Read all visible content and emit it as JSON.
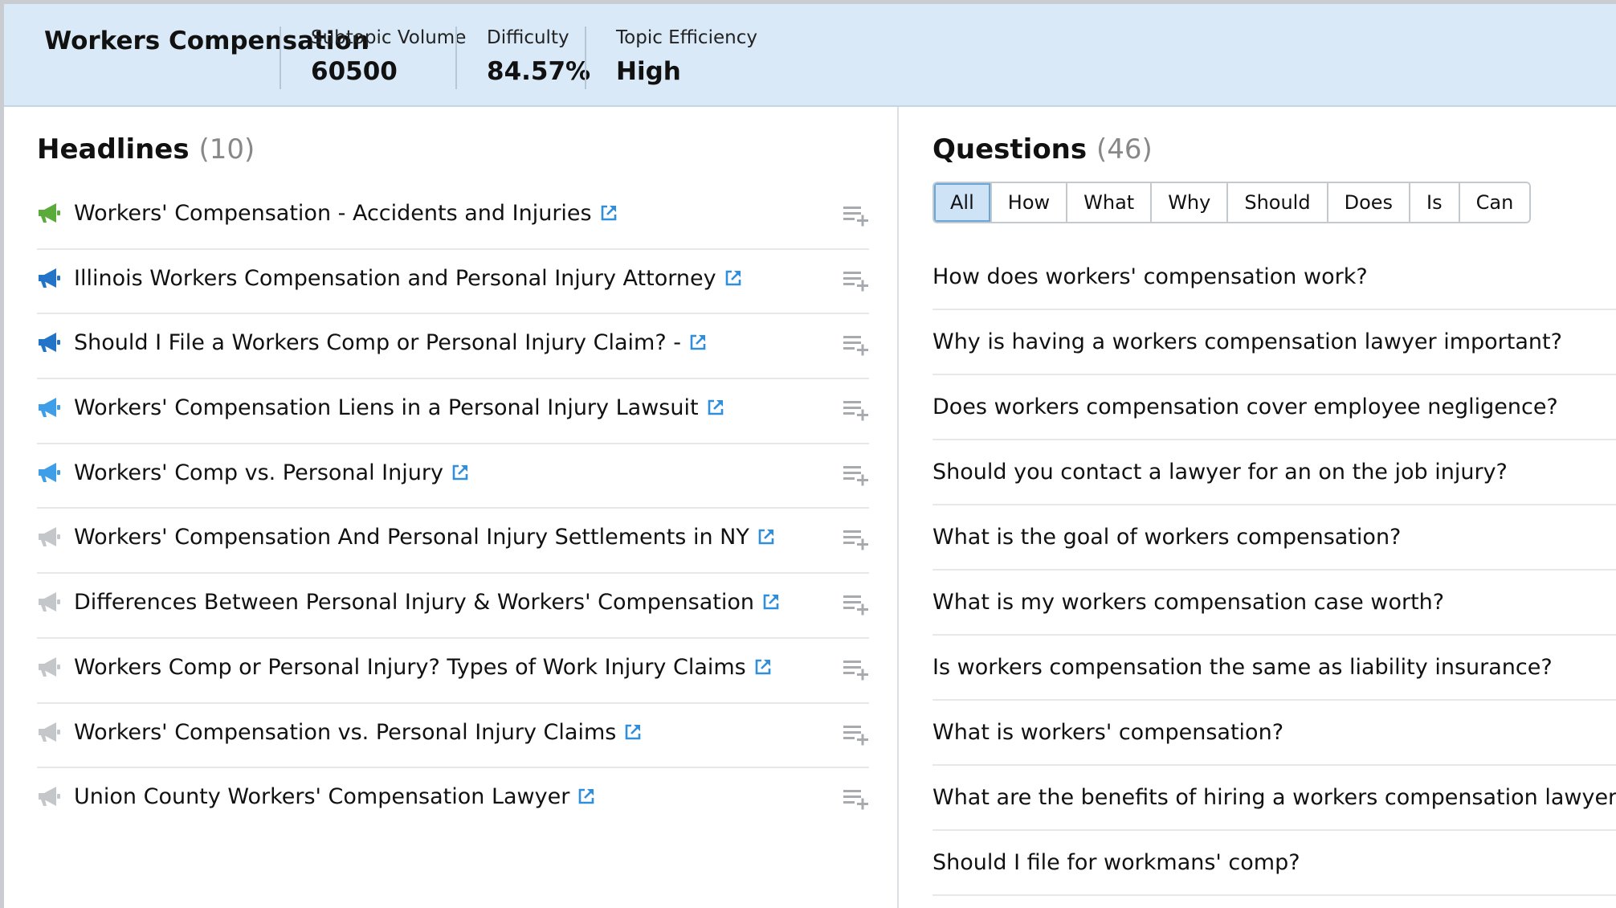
{
  "header": {
    "title": "Workers Compensation",
    "metrics": [
      {
        "label": "Subtopic Volume",
        "value": "60500"
      },
      {
        "label": "Difficulty",
        "value": "84.57%"
      },
      {
        "label": "Topic Efficiency",
        "value": "High"
      }
    ]
  },
  "headlines": {
    "title": "Headlines",
    "count": "(10)",
    "items": [
      {
        "text": "Workers' Compensation - Accidents and Injuries",
        "level": "high",
        "icon": "megaphone-icon"
      },
      {
        "text": "Illinois Workers Compensation and Personal Injury Attorney",
        "level": "medium",
        "icon": "megaphone-icon"
      },
      {
        "text": "Should I File a Workers Comp or Personal Injury Claim? -",
        "level": "medium",
        "icon": "megaphone-icon"
      },
      {
        "text": "Workers' Compensation Liens in a Personal Injury Lawsuit",
        "level": "low",
        "icon": "megaphone-icon"
      },
      {
        "text": "Workers' Comp vs. Personal Injury",
        "level": "low",
        "icon": "megaphone-icon"
      },
      {
        "text": "Workers' Compensation And Personal Injury Settlements in NY",
        "level": "none",
        "icon": "megaphone-icon"
      },
      {
        "text": "Differences Between Personal Injury & Workers' Compensation",
        "level": "none",
        "icon": "megaphone-icon"
      },
      {
        "text": "Workers Comp or Personal Injury? Types of Work Injury Claims",
        "level": "none",
        "icon": "megaphone-icon"
      },
      {
        "text": "Workers' Compensation vs. Personal Injury Claims",
        "level": "none",
        "icon": "megaphone-icon"
      },
      {
        "text": "Union County Workers' Compensation Lawyer",
        "level": "none",
        "icon": "megaphone-icon"
      }
    ]
  },
  "questions": {
    "title": "Questions",
    "count": "(46)",
    "tabs": [
      "All",
      "How",
      "What",
      "Why",
      "Should",
      "Does",
      "Is",
      "Can"
    ],
    "active_tab": "All",
    "items": [
      "How does workers' compensation work?",
      "Why is having a workers compensation lawyer important?",
      "Does workers compensation cover employee negligence?",
      "Should you contact a lawyer for an on the job injury?",
      "What is the goal of workers compensation?",
      "What is my workers compensation case worth?",
      "Is workers compensation the same as liability insurance?",
      "What is workers' compensation?",
      "What are the benefits of hiring a workers compensation lawyer?",
      "Should I file for workmans' comp?"
    ]
  },
  "colors": {
    "header_bg": "#d9e9f7",
    "level_high": "#5aaa3c",
    "level_medium": "#2374c6",
    "level_low": "#3f9ee8",
    "level_none": "#c4c7ca",
    "link": "#2f8fdc",
    "add_icon": "#a7abb0"
  }
}
